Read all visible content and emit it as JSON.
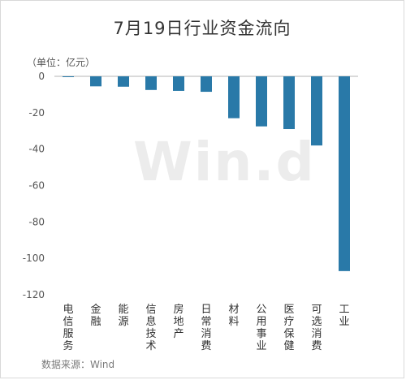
{
  "title": "7月19日行业资金流向",
  "unit_label": "（单位：亿元）",
  "source": "数据来源：Wind",
  "watermark": "Win.d",
  "colors": {
    "bar": "#2979a8",
    "axis": "#b5b5b5",
    "text": "#333333"
  },
  "chart_data": {
    "type": "bar",
    "title": "7月19日行业资金流向",
    "ylabel": "（单位：亿元）",
    "categories": [
      "电信服务",
      "金融",
      "能源",
      "信息技术",
      "房地产",
      "日常消费",
      "材料",
      "公用事业",
      "医疗保健",
      "可选消费",
      "工业"
    ],
    "values": [
      -0.3,
      -5.5,
      -5.7,
      -7.5,
      -8.0,
      -8.5,
      -23.0,
      -27.5,
      -29.0,
      -38.0,
      -107.0
    ],
    "ylim": [
      -120,
      0
    ],
    "yticks": [
      0,
      -20,
      -40,
      -60,
      -80,
      -100,
      -120
    ],
    "grid": false,
    "legend": "none"
  }
}
